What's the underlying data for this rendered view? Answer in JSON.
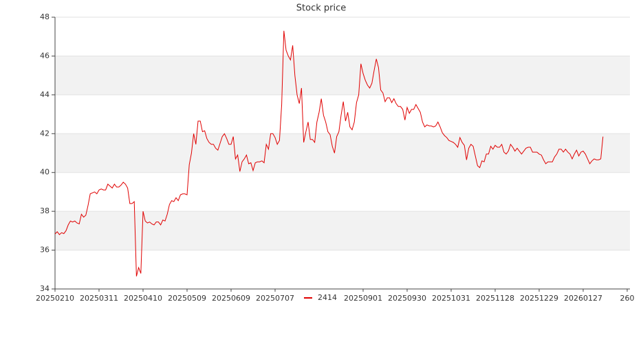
{
  "chart_data": {
    "type": "line",
    "title": "Stock price",
    "series": [
      {
        "name": "2414",
        "color": "#e00000",
        "values": [
          36.83,
          36.95,
          36.8,
          36.9,
          36.85,
          37.0,
          37.3,
          37.5,
          37.45,
          37.5,
          37.4,
          37.35,
          37.85,
          37.7,
          37.8,
          38.3,
          38.9,
          38.95,
          39.0,
          38.9,
          39.1,
          39.15,
          39.1,
          39.1,
          39.4,
          39.3,
          39.2,
          39.4,
          39.25,
          39.25,
          39.35,
          39.5,
          39.4,
          39.2,
          38.4,
          38.4,
          38.5,
          34.65,
          35.1,
          34.8,
          38.0,
          37.5,
          37.4,
          37.45,
          37.35,
          37.3,
          37.45,
          37.45,
          37.3,
          37.55,
          37.5,
          37.85,
          38.35,
          38.55,
          38.5,
          38.7,
          38.55,
          38.85,
          38.9,
          38.9,
          38.85,
          40.4,
          41.0,
          42.0,
          41.45,
          42.65,
          42.65,
          42.1,
          42.15,
          41.75,
          41.55,
          41.45,
          41.45,
          41.25,
          41.15,
          41.5,
          41.85,
          42.0,
          41.75,
          41.45,
          41.45,
          41.85,
          40.7,
          40.9,
          40.05,
          40.55,
          40.7,
          40.9,
          40.45,
          40.5,
          40.1,
          40.5,
          40.55,
          40.55,
          40.6,
          40.5,
          41.45,
          41.2,
          42.0,
          42.0,
          41.8,
          41.45,
          41.65,
          43.5,
          47.3,
          46.3,
          46.0,
          45.8,
          46.55,
          45.0,
          44.0,
          43.55,
          44.35,
          41.55,
          42.1,
          42.6,
          41.7,
          41.7,
          41.55,
          42.6,
          43.1,
          43.8,
          42.95,
          42.6,
          42.1,
          41.95,
          41.35,
          41.0,
          41.85,
          42.1,
          42.95,
          43.65,
          42.65,
          43.1,
          42.35,
          42.2,
          42.6,
          43.6,
          44.0,
          45.6,
          45.1,
          44.75,
          44.5,
          44.35,
          44.6,
          45.25,
          45.85,
          45.4,
          44.25,
          44.1,
          43.65,
          43.85,
          43.85,
          43.6,
          43.8,
          43.55,
          43.4,
          43.4,
          43.25,
          42.7,
          43.35,
          43.05,
          43.25,
          43.25,
          43.5,
          43.3,
          43.1,
          42.6,
          42.35,
          42.45,
          42.4,
          42.4,
          42.35,
          42.4,
          42.6,
          42.35,
          42.05,
          41.9,
          41.8,
          41.65,
          41.6,
          41.55,
          41.45,
          41.3,
          41.8,
          41.55,
          41.4,
          40.65,
          41.25,
          41.45,
          41.35,
          40.85,
          40.35,
          40.25,
          40.6,
          40.55,
          40.95,
          40.95,
          41.35,
          41.2,
          41.4,
          41.3,
          41.3,
          41.45,
          41.05,
          40.95,
          41.1,
          41.45,
          41.3,
          41.1,
          41.25,
          41.1,
          40.95,
          41.1,
          41.25,
          41.3,
          41.3,
          41.05,
          41.05,
          41.05,
          40.95,
          40.9,
          40.65,
          40.45,
          40.55,
          40.55,
          40.55,
          40.8,
          40.95,
          41.2,
          41.2,
          41.05,
          41.2,
          41.05,
          40.95,
          40.7,
          40.95,
          41.15,
          40.85,
          41.05,
          41.1,
          40.95,
          40.7,
          40.45,
          40.6,
          40.7,
          40.65,
          40.65,
          40.7,
          41.85
        ]
      }
    ],
    "xlim": [
      0,
      261.25
    ],
    "xticks": [
      {
        "value": 0,
        "label": "20250210"
      },
      {
        "value": 20,
        "label": "20250311"
      },
      {
        "value": 40,
        "label": "20250410"
      },
      {
        "value": 60,
        "label": "20250509"
      },
      {
        "value": 80,
        "label": "20250609"
      },
      {
        "value": 100,
        "label": "20250707"
      },
      {
        "value": 140,
        "label": "20250901"
      },
      {
        "value": 160,
        "label": "20250930"
      },
      {
        "value": 180,
        "label": "20251031"
      },
      {
        "value": 200,
        "label": "20251128"
      },
      {
        "value": 220,
        "label": "20251229"
      },
      {
        "value": 240,
        "label": "20260127"
      },
      260
    ],
    "ylim": [
      34,
      48
    ],
    "yticks": [
      34,
      36,
      38,
      40,
      42,
      44,
      46,
      48
    ],
    "grid": true,
    "band_color": "#f2f2f2",
    "legend": "bottom"
  }
}
